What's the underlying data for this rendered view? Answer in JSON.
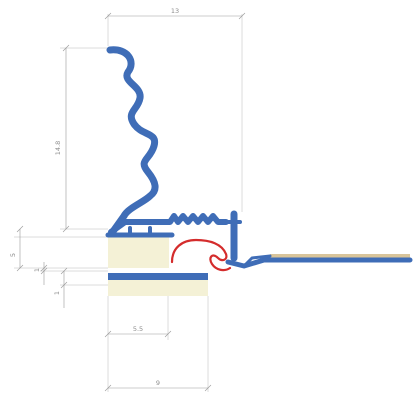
{
  "dimensions": {
    "top_width": "13",
    "left_height": "14.8",
    "upper_step": "5",
    "mid_step": "1",
    "low_step": "1",
    "inner_width": "5.5",
    "bottom_width": "9"
  },
  "colors": {
    "profile": "#3f6db7",
    "insert": "#f4f1d6",
    "spring": "#d42c2c",
    "floor": "#d8c49a",
    "dimension": "#9a9a9a"
  }
}
